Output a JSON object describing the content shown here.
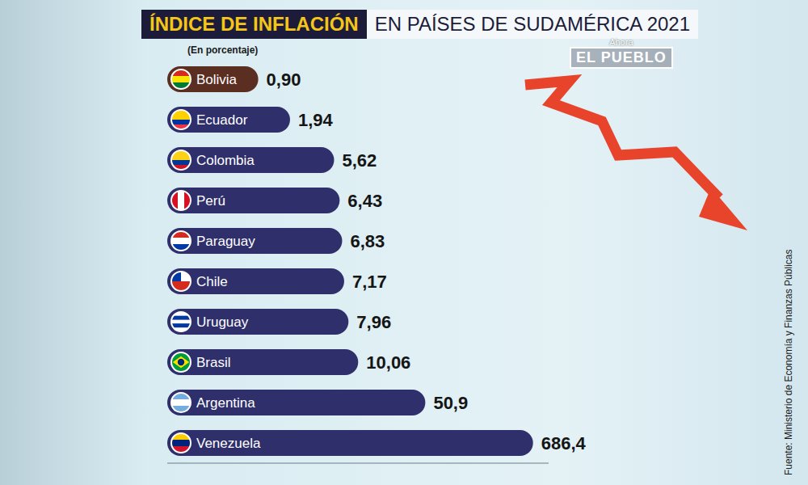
{
  "chart_data": {
    "type": "bar",
    "orientation": "horizontal",
    "title": "ÍNDICE DE INFLACIÓN",
    "subtitle": "EN PAÍSES DE SUDAMÉRICA 2021",
    "annotations": [
      "(En porcentaje)",
      "Fuente: Ministerio de Economía y Finanzas Públicas",
      "Ahora",
      "EL PUEBLO"
    ],
    "categories": [
      "Bolivia",
      "Ecuador",
      "Colombia",
      "Perú",
      "Paraguay",
      "Chile",
      "Uruguay",
      "Brasil",
      "Argentina",
      "Venezuela"
    ],
    "values": [
      0.9,
      1.94,
      5.62,
      6.43,
      6.83,
      7.17,
      7.96,
      10.06,
      50.9,
      686.4
    ],
    "value_labels": [
      "0,90",
      "1,94",
      "5,62",
      "6,43",
      "6,83",
      "7,17",
      "7,96",
      "10,06",
      "50,9",
      "686,4"
    ],
    "colors": [
      "#5b2e22",
      "#2f2f6b",
      "#2f2f6b",
      "#2f2f6b",
      "#2f2f6b",
      "#2f2f6b",
      "#2f2f6b",
      "#2f2f6b",
      "#2f2f6b",
      "#2f2f6b"
    ],
    "log": "x",
    "xlim": [
      0.1,
      1000
    ],
    "tick_labels": false,
    "data_labels": true,
    "grid": false
  }
}
